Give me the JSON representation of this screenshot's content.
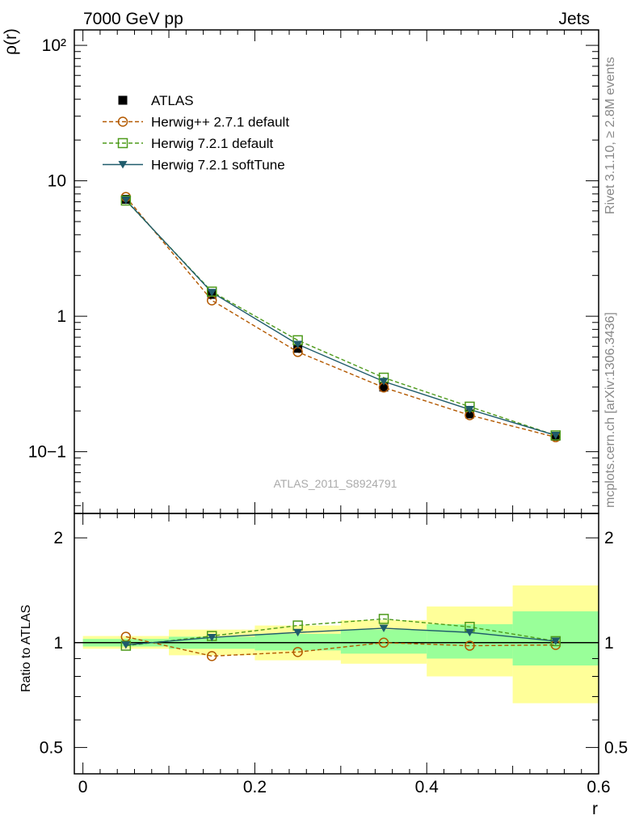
{
  "header": {
    "left": "7000 GeV pp",
    "right": "Jets"
  },
  "side_text": {
    "rivet": "Rivet 3.1.10, ≥ 2.8M events",
    "mcplots": "mcplots.cern.ch [arXiv:1306.3436]"
  },
  "watermark": "ATLAS_2011_S8924791",
  "chart_data": [
    {
      "type": "line",
      "panel": "main",
      "ylabel": "ρ(r)",
      "xlabel": "",
      "yscale": "log",
      "ylim": [
        0.035,
        130
      ],
      "xlim": [
        -0.01,
        0.6
      ],
      "legend_position": "top-left",
      "y_tick_labels": [
        "10−1",
        "1",
        "10",
        "10²"
      ],
      "x": [
        0.05,
        0.15,
        0.25,
        0.35,
        0.45,
        0.55
      ],
      "series": [
        {
          "name": "ATLAS",
          "values": [
            7.3,
            1.45,
            0.58,
            0.3,
            0.19,
            0.13
          ],
          "color": "#000000",
          "marker": "square-filled",
          "line": "none"
        },
        {
          "name": "Herwig++ 2.7.1 default",
          "values": [
            7.6,
            1.31,
            0.545,
            0.298,
            0.186,
            0.128
          ],
          "color": "#b35900",
          "marker": "circle-open",
          "line": "dashed"
        },
        {
          "name": "Herwig 7.2.1 default",
          "values": [
            7.15,
            1.52,
            0.665,
            0.352,
            0.215,
            0.132
          ],
          "color": "#4d9a1a",
          "marker": "square-open",
          "line": "dashed"
        },
        {
          "name": "Herwig 7.2.1 softTune",
          "values": [
            7.2,
            1.5,
            0.62,
            0.33,
            0.205,
            0.132
          ],
          "color": "#1f5b6b",
          "marker": "triangle-down-filled",
          "line": "solid"
        }
      ]
    },
    {
      "type": "line",
      "panel": "ratio",
      "ylabel": "Ratio to ATLAS",
      "xlabel": "r",
      "ylim": [
        0.42,
        2.35
      ],
      "xlim": [
        -0.01,
        0.6
      ],
      "y_tick_labels": [
        "0.5",
        "1",
        "2"
      ],
      "x_tick_labels": [
        "0",
        "0.2",
        "0.4",
        "0.6"
      ],
      "x": [
        0.05,
        0.15,
        0.25,
        0.35,
        0.45,
        0.55
      ],
      "bins": [
        [
          0.0,
          0.1
        ],
        [
          0.1,
          0.2
        ],
        [
          0.2,
          0.3
        ],
        [
          0.3,
          0.4
        ],
        [
          0.4,
          0.5
        ],
        [
          0.5,
          0.6
        ]
      ],
      "stat_band": [
        [
          0.975,
          1.025
        ],
        [
          0.96,
          1.04
        ],
        [
          0.95,
          1.06
        ],
        [
          0.93,
          1.09
        ],
        [
          0.9,
          1.13
        ],
        [
          0.86,
          1.23
        ]
      ],
      "total_band": [
        [
          0.96,
          1.045
        ],
        [
          0.92,
          1.09
        ],
        [
          0.89,
          1.12
        ],
        [
          0.87,
          1.16
        ],
        [
          0.8,
          1.27
        ],
        [
          0.67,
          1.46
        ]
      ],
      "series": [
        {
          "name": "Herwig++ 2.7.1 default",
          "values": [
            1.04,
            0.915,
            0.94,
            1.0,
            0.98,
            0.985
          ],
          "color": "#b35900"
        },
        {
          "name": "Herwig 7.2.1 default",
          "values": [
            0.98,
            1.045,
            1.12,
            1.17,
            1.11,
            1.01
          ],
          "color": "#4d9a1a"
        },
        {
          "name": "Herwig 7.2.1 softTune",
          "values": [
            0.985,
            1.035,
            1.07,
            1.1,
            1.07,
            1.01
          ],
          "color": "#1f5b6b"
        }
      ]
    }
  ],
  "colors": {
    "stat_band": "#99ff99",
    "total_band": "#ffff99",
    "frame": "#000000"
  }
}
